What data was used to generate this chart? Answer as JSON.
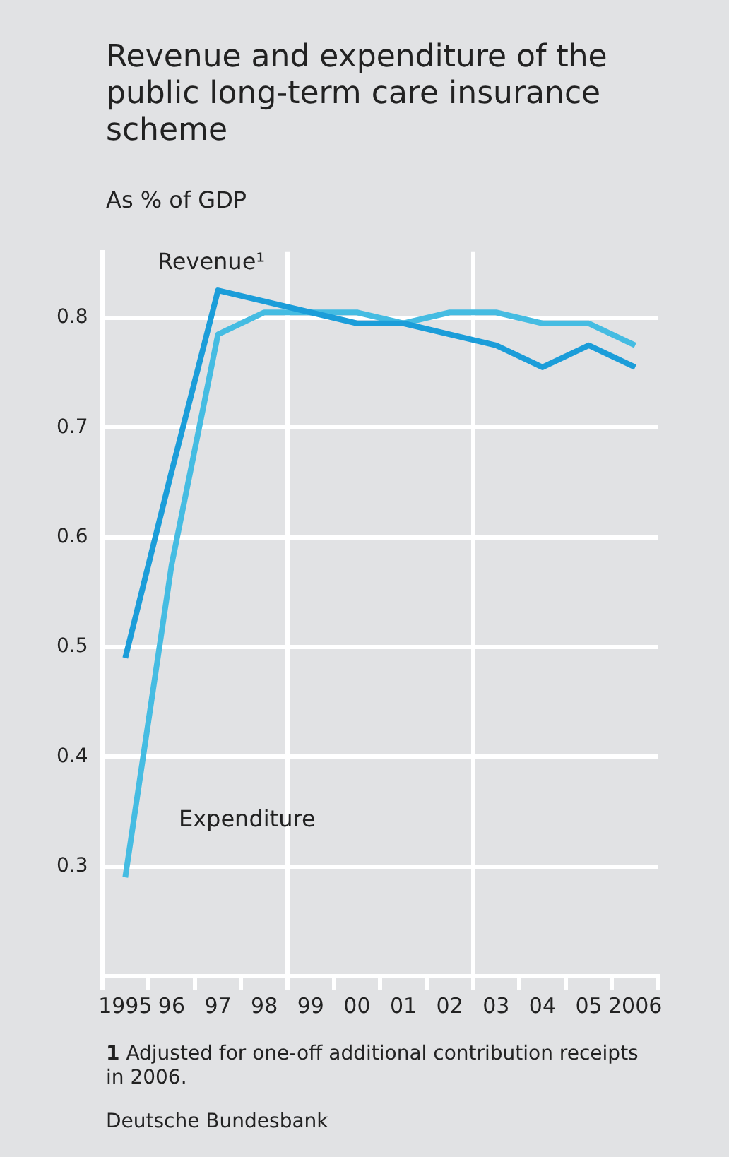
{
  "chart_data": {
    "type": "line",
    "title": "Revenue and expenditure of the public long-term care insurance scheme",
    "ylabel": "As % of GDP",
    "categories": [
      "1995",
      "96",
      "97",
      "98",
      "99",
      "00",
      "01",
      "02",
      "03",
      "04",
      "05",
      "2006"
    ],
    "series": [
      {
        "name": "Revenue¹",
        "color": "#1b9dd9",
        "values": [
          0.49,
          0.66,
          0.825,
          0.815,
          0.805,
          0.795,
          0.795,
          0.785,
          0.775,
          0.755,
          0.775,
          0.755
        ]
      },
      {
        "name": "Expenditure",
        "color": "#45bce2",
        "values": [
          0.29,
          0.575,
          0.785,
          0.805,
          0.805,
          0.805,
          0.795,
          0.805,
          0.805,
          0.795,
          0.795,
          0.775
        ]
      }
    ],
    "ylim": [
      0.2,
      0.86
    ],
    "yticks": [
      0.3,
      0.4,
      0.5,
      0.6,
      0.7,
      0.8
    ],
    "grid": true,
    "legend": false,
    "marker": "none",
    "line_style": "solid",
    "annotations": [
      "1 Adjusted for one-off additional contribution receipts in 2006.",
      "Deutsche Bundesbank"
    ]
  }
}
